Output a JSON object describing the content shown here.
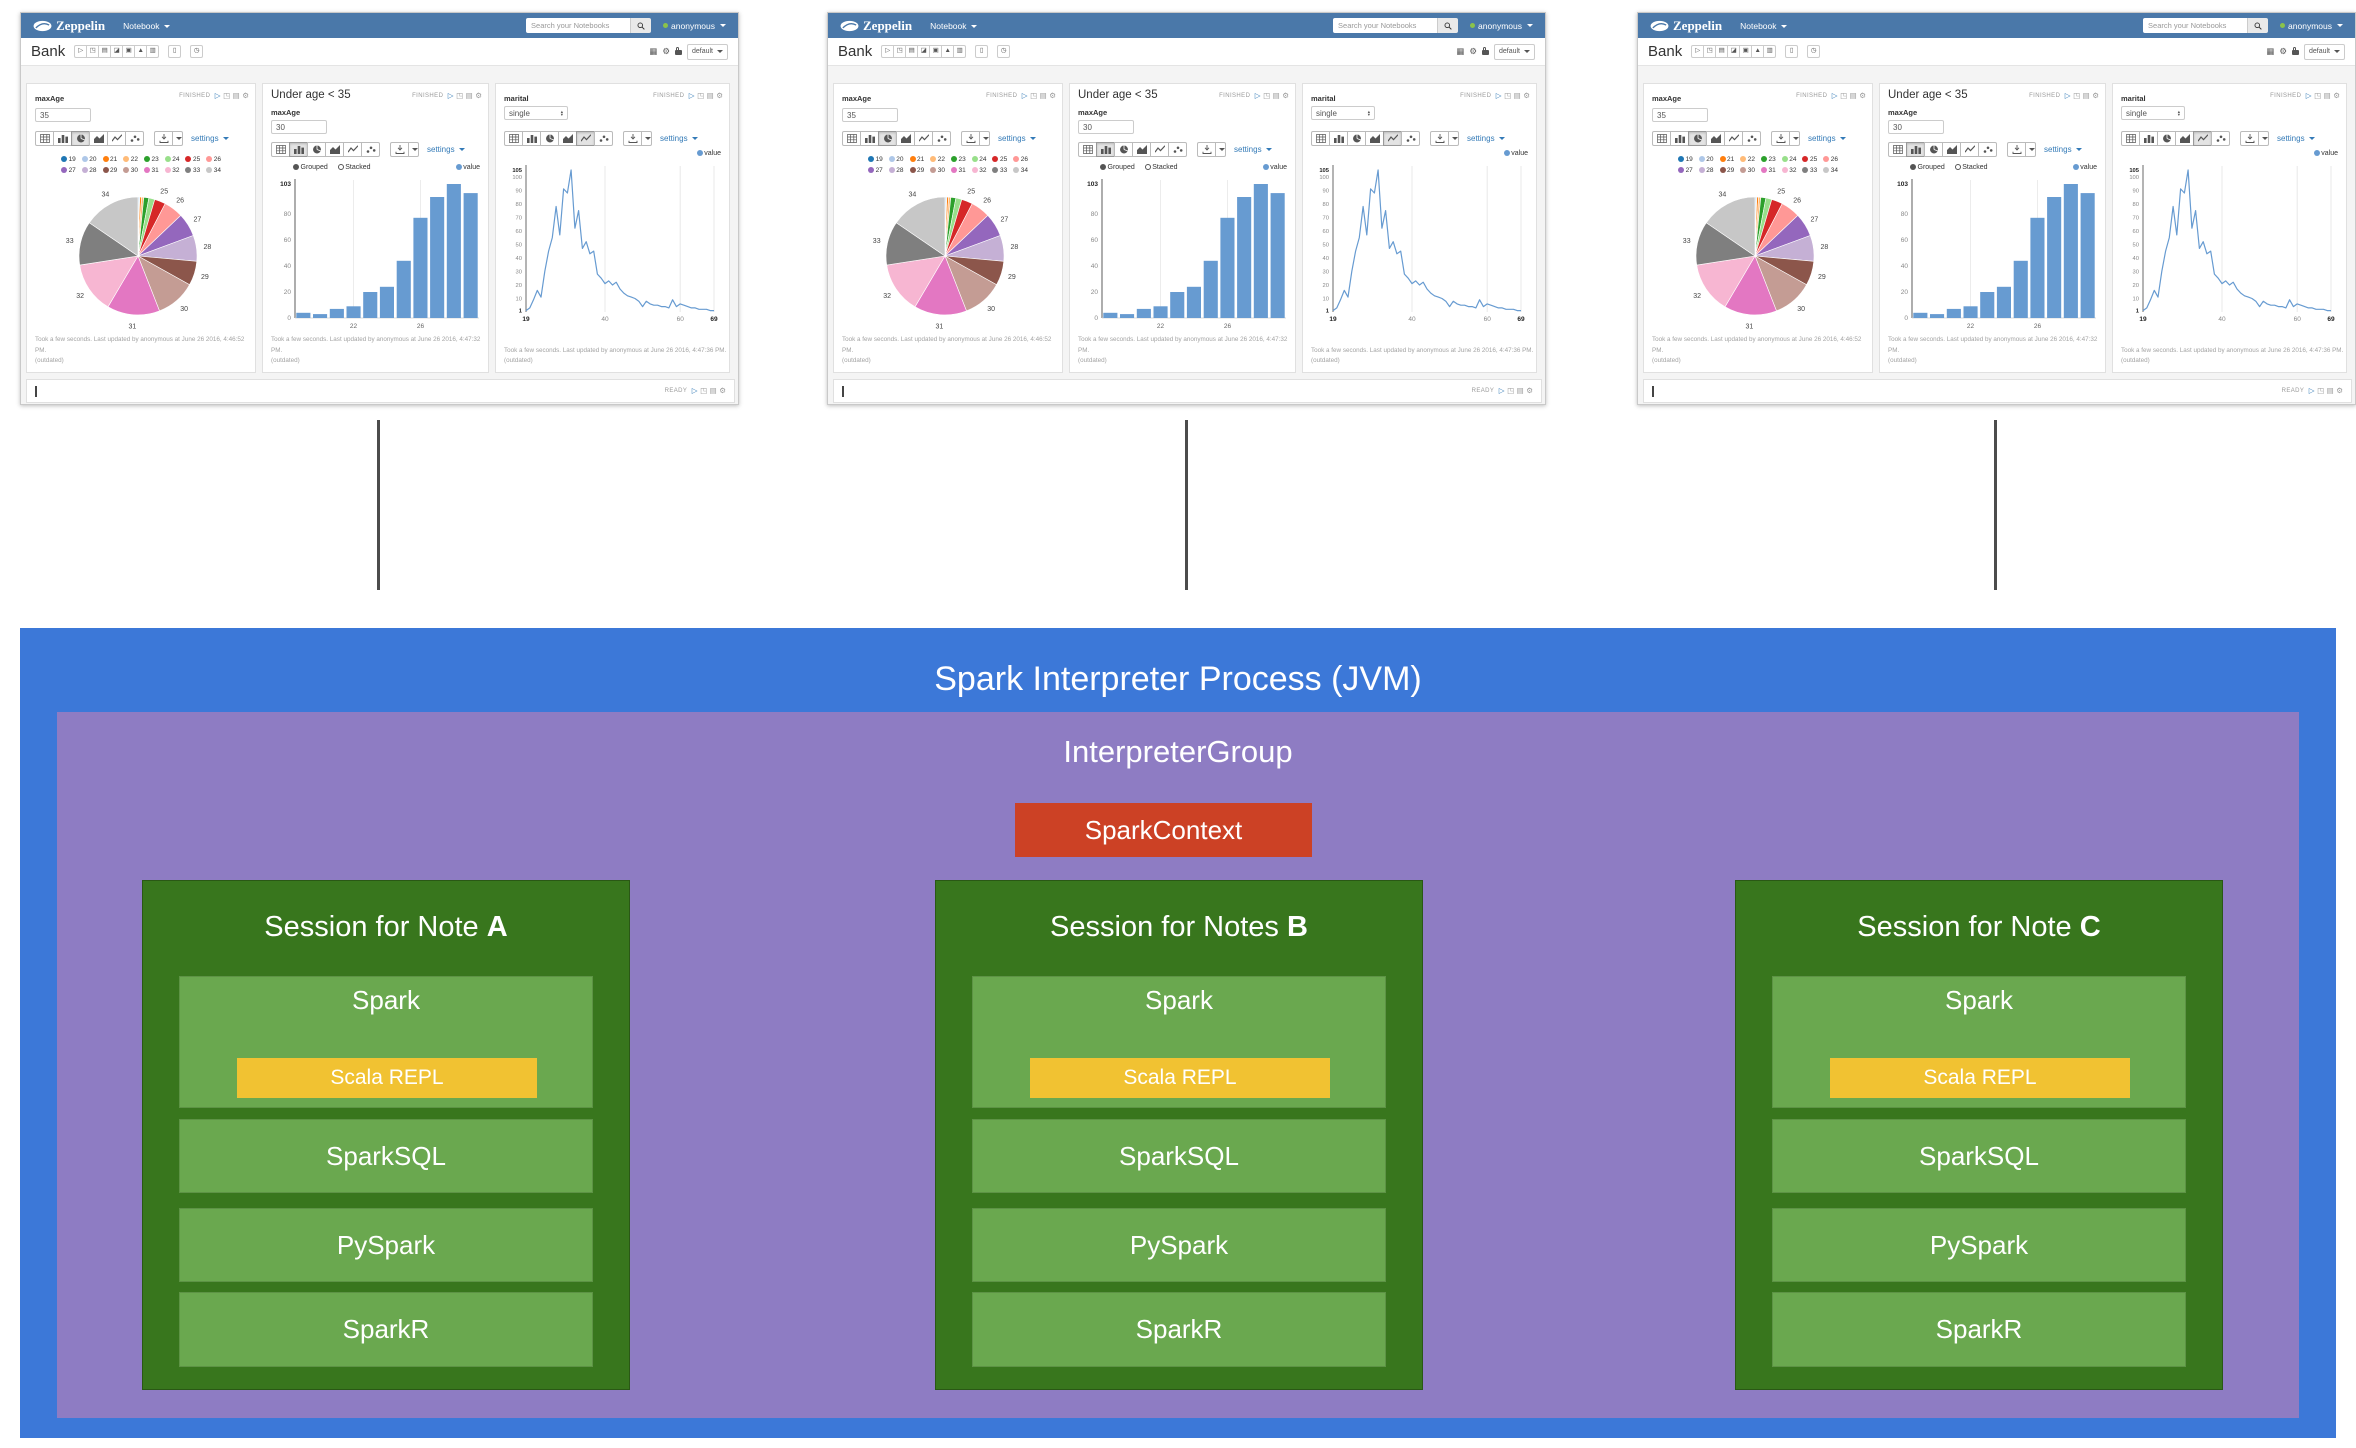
{
  "colors": {
    "navbar": "#4a78a9",
    "link": "#337ab7",
    "process_box": "#3c78d8",
    "group_box": "#8e7cc3",
    "context_box": "#cc4125",
    "session_box": "#38761d",
    "module_box": "#6aa84f",
    "repl_box": "#f1c232",
    "connector": "#4c4c4c",
    "bar_color": "#679bd1",
    "line_color": "#679bd1"
  },
  "diagram": {
    "process_label": "Spark Interpreter Process (JVM)",
    "group_label": "InterpreterGroup",
    "context_label": "SparkContext",
    "repl_label": "Scala REPL",
    "modules": [
      "Spark",
      "SparkSQL",
      "PySpark",
      "SparkR"
    ],
    "sessions": [
      {
        "label": "Session for Note",
        "note": "A"
      },
      {
        "label": "Session for Notes",
        "note": "B"
      },
      {
        "label": "Session for Note",
        "note": "C"
      }
    ]
  },
  "zeppelin": {
    "navbar": {
      "brand": "Zeppelin",
      "menu_label": "Notebook",
      "search_placeholder": "Search your Notebooks",
      "user_label": "anonymous"
    },
    "note": {
      "title": "Bank",
      "toolbar_icons": [
        "run-all",
        "show-hide-code",
        "show-hide-output",
        "clear-output",
        "clone-note",
        "export-note",
        "version-control"
      ],
      "action_icons": [
        "trash",
        "scheduler"
      ],
      "right_icons": [
        "keyboard-shortcuts",
        "interpreter-settings",
        "permissions-lock"
      ],
      "interpreter_label": "default"
    },
    "status_finished": "FINISHED",
    "status_ready": "READY",
    "settings_label": "settings",
    "paragraphs": [
      {
        "type": "pie",
        "form_label": "maxAge",
        "input_value": "35",
        "footer_line1": "Took a few seconds. Last updated by anonymous at June 26 2016, 4:46:52 PM.",
        "footer_line2": "(outdated)"
      },
      {
        "type": "bar",
        "title": "Under age < 35",
        "form_label": "maxAge",
        "input_value": "30",
        "footer_line1": "Took a few seconds. Last updated by anonymous at June 26 2016, 4:47:32 PM.",
        "footer_line2": "(outdated)"
      },
      {
        "type": "line",
        "form_label": "marital",
        "input_value": "single",
        "footer_line1": "Took a few seconds. Last updated by anonymous at June 26 2016, 4:47:36 PM.",
        "footer_line2": "(outdated)"
      }
    ]
  },
  "chart_data": [
    {
      "type": "pie",
      "title": "Age distribution (maxAge = 35)",
      "categories": [
        "19",
        "20",
        "21",
        "22",
        "23",
        "24",
        "25",
        "26",
        "27",
        "28",
        "29",
        "30",
        "31",
        "32",
        "33",
        "34"
      ],
      "values": [
        4,
        3,
        7,
        9,
        20,
        24,
        44,
        77,
        94,
        103,
        97,
        160,
        210,
        205,
        175,
        225
      ],
      "colors": [
        "#1f77b4",
        "#aec7e8",
        "#ff7f0e",
        "#ffbb78",
        "#2ca02c",
        "#98df8a",
        "#d62728",
        "#ff9896",
        "#9467bd",
        "#c5b0d5",
        "#8c564b",
        "#c49c94",
        "#e377c2",
        "#f7b6d2",
        "#7f7f7f",
        "#c7c7c7"
      ],
      "labeled_slices": [
        "25",
        "26",
        "27",
        "28",
        "29",
        "30",
        "31",
        "32",
        "33",
        "34"
      ],
      "legend_position": "top"
    },
    {
      "type": "bar",
      "title": "Under age < 35 (maxAge = 30)",
      "categories": [
        "19",
        "20",
        "21",
        "22",
        "23",
        "24",
        "25",
        "26",
        "27",
        "28",
        "29"
      ],
      "values": [
        4,
        3,
        7,
        9,
        20,
        24,
        44,
        77,
        93,
        103,
        96
      ],
      "ylim": [
        0,
        103
      ],
      "yticks": [
        0,
        20,
        40,
        60,
        80
      ],
      "ymax_label": "103",
      "xticks": [
        "22",
        "26"
      ],
      "legend": [
        "Grouped",
        "Stacked"
      ],
      "series_label": "value",
      "grid": true
    },
    {
      "type": "line",
      "title": "marital = single, age distribution",
      "x_start": 19,
      "x_end": 69,
      "values": [
        1,
        3,
        9,
        16,
        11,
        30,
        45,
        55,
        78,
        57,
        91,
        88,
        105,
        62,
        75,
        47,
        52,
        43,
        45,
        28,
        25,
        21,
        23,
        20,
        22,
        17,
        14,
        12,
        11,
        10,
        8,
        4,
        8,
        6,
        5,
        5,
        4,
        4,
        3,
        9,
        4,
        6,
        5,
        4,
        3,
        3,
        2,
        2,
        2,
        1,
        1
      ],
      "ylim": [
        0,
        105
      ],
      "yticks": [
        1,
        10,
        20,
        30,
        40,
        50,
        60,
        70,
        80,
        90,
        100,
        105
      ],
      "xticks": [
        19,
        40,
        60,
        69
      ],
      "series_label": "value",
      "grid": true
    }
  ]
}
